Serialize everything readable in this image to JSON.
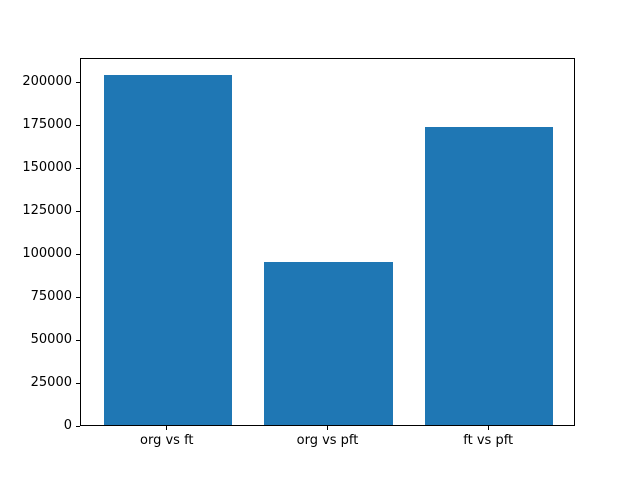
{
  "chart_data": {
    "type": "bar",
    "title": "",
    "xlabel": "",
    "ylabel": "",
    "categories": [
      "org vs ft",
      "org vs pft",
      "ft vs pft"
    ],
    "x": [
      0,
      1,
      2
    ],
    "values": [
      204500,
      95500,
      174000
    ],
    "bar_width": 0.8,
    "bar_color": "#1f77b4",
    "y_ticks": [
      0,
      25000,
      50000,
      75000,
      100000,
      125000,
      150000,
      175000,
      200000
    ],
    "ylim": [
      0,
      214000
    ],
    "xlim": [
      -0.54,
      2.54
    ],
    "grid": false,
    "legend": "none",
    "background_color": "#ffffff",
    "axis_color": "#000000"
  }
}
